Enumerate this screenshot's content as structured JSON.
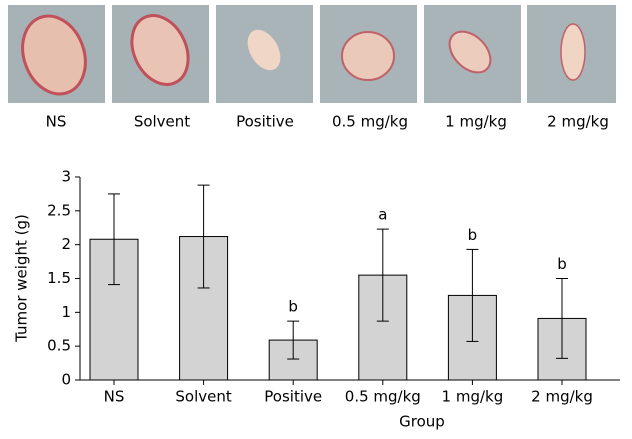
{
  "chart_data": {
    "type": "bar",
    "categories": [
      "NS",
      "Solvent",
      "Positive",
      "0.5 mg/kg",
      "1 mg/kg",
      "2 mg/kg"
    ],
    "values": [
      2.08,
      2.12,
      0.59,
      1.55,
      1.25,
      0.91
    ],
    "errors": [
      0.67,
      0.76,
      0.28,
      0.68,
      0.68,
      0.59
    ],
    "annotations": [
      null,
      null,
      "b",
      "a",
      "b",
      "b"
    ],
    "color": "#d3d3d3",
    "xlabel": "Group",
    "ylabel": "Tumor weight (g)",
    "ylim": [
      0,
      3
    ],
    "yticks": [
      0,
      0.5,
      1,
      1.5,
      2,
      2.5,
      3
    ]
  }
}
